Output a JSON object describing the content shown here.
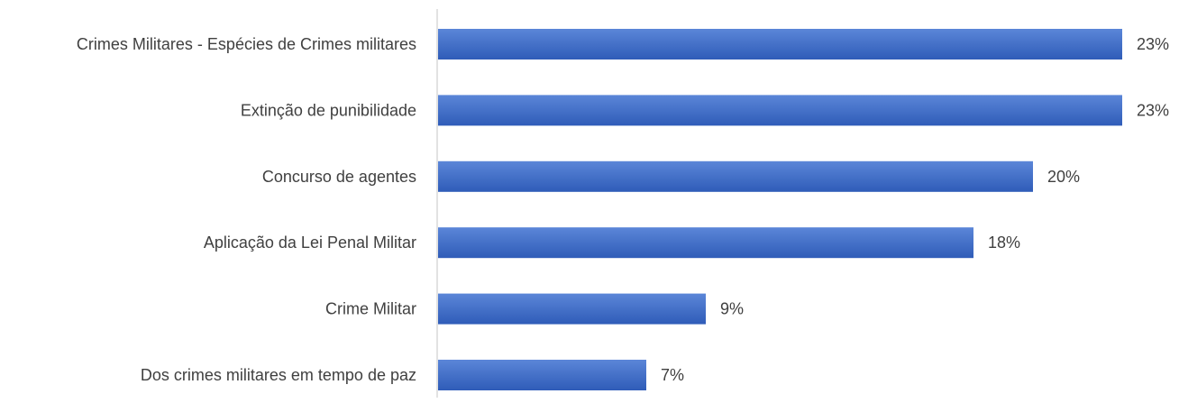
{
  "chart_data": {
    "type": "bar",
    "orientation": "horizontal",
    "categories": [
      "Crimes Militares - Espécies de Crimes militares",
      "Extinção de punibilidade",
      "Concurso de agentes",
      "Aplicação da Lei Penal Militar",
      "Crime Militar",
      "Dos crimes militares em tempo de paz"
    ],
    "values": [
      23,
      23,
      20,
      18,
      9,
      7
    ],
    "value_labels": [
      "23%",
      "23%",
      "20%",
      "18%",
      "9%",
      "7%"
    ],
    "unit": "%",
    "xlim": [
      0,
      23
    ],
    "grid": false,
    "legend": "none",
    "colors": {
      "bar_top": "#5b86d8",
      "bar_bottom": "#2f5cb8",
      "axis": "#d9d9d9",
      "text": "#404040"
    }
  }
}
